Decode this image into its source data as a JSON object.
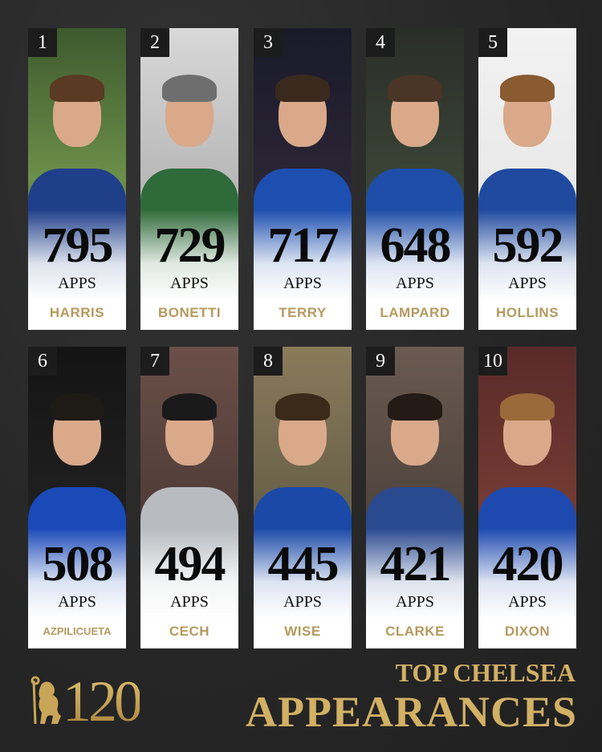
{
  "title": {
    "line1": "TOP CHELSEA",
    "line2": "APPEARANCES"
  },
  "logo": {
    "text": "120"
  },
  "apps_label": "APPS",
  "colors": {
    "gold": "#b59a5e",
    "background": "#2a2a2a",
    "chelsea_blue": "#1d4fa8"
  },
  "players": [
    {
      "rank": "1",
      "apps": "795",
      "name": "HARRIS"
    },
    {
      "rank": "2",
      "apps": "729",
      "name": "BONETTI"
    },
    {
      "rank": "3",
      "apps": "717",
      "name": "TERRY"
    },
    {
      "rank": "4",
      "apps": "648",
      "name": "LAMPARD"
    },
    {
      "rank": "5",
      "apps": "592",
      "name": "HOLLINS"
    },
    {
      "rank": "6",
      "apps": "508",
      "name": "AZPILICUETA"
    },
    {
      "rank": "7",
      "apps": "494",
      "name": "CECH"
    },
    {
      "rank": "8",
      "apps": "445",
      "name": "WISE"
    },
    {
      "rank": "9",
      "apps": "421",
      "name": "CLARKE"
    },
    {
      "rank": "10",
      "apps": "420",
      "name": "DIXON"
    }
  ]
}
